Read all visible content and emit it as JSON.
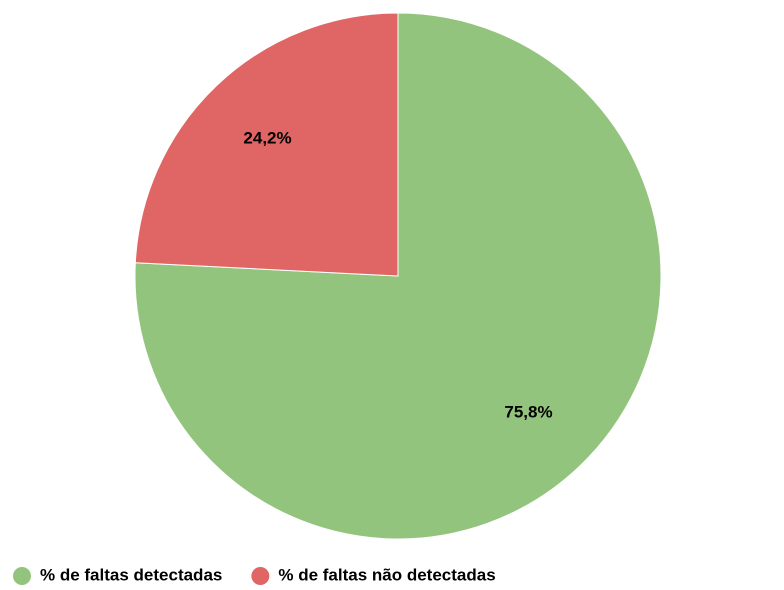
{
  "chart_data": {
    "type": "pie",
    "categories": [
      "% de faltas detectadas",
      "% de faltas não detectadas"
    ],
    "values": [
      75.8,
      24.2
    ],
    "value_labels": [
      "75,8%",
      "24,2%"
    ],
    "colors": [
      "#93c47d",
      "#e06666"
    ],
    "legend": "bottom"
  }
}
